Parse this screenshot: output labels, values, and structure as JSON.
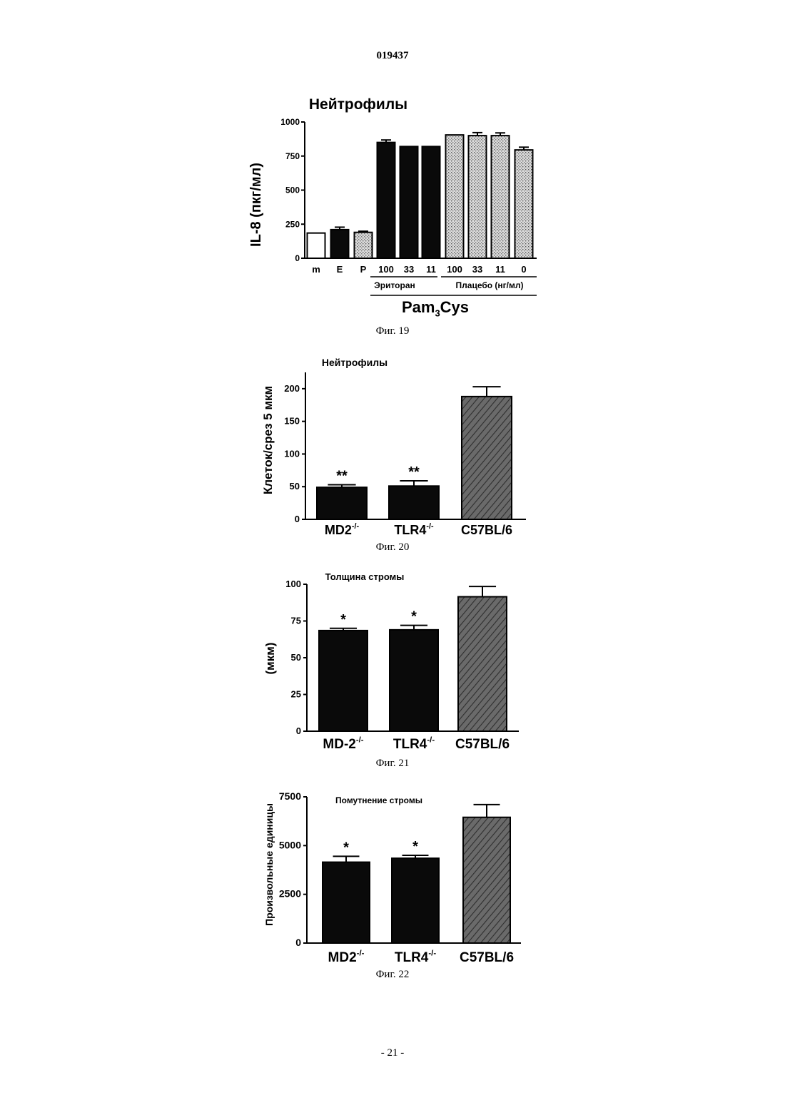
{
  "document": {
    "doc_number": "019437",
    "page_footer": "- 21 -"
  },
  "figures": [
    {
      "caption": "Фиг. 19",
      "chart_data": {
        "type": "bar",
        "title": "Нейтрофилы",
        "ylabel": "IL-8 (пкг/мл)",
        "xlabel": "",
        "ylim": [
          0,
          1000
        ],
        "yticks": [
          "0",
          "250",
          "500",
          "750",
          "1000"
        ],
        "categories": [
          "m",
          "E",
          "P",
          "100",
          "33",
          "11",
          "100",
          "33",
          "11",
          "0"
        ],
        "values": [
          185,
          210,
          190,
          850,
          820,
          820,
          905,
          900,
          900,
          795
        ],
        "errors": [
          0,
          18,
          8,
          18,
          0,
          0,
          0,
          22,
          20,
          20
        ],
        "bar_styles": [
          "white",
          "black",
          "dotted",
          "black",
          "black",
          "black",
          "dotted",
          "dotted",
          "dotted",
          "dotted"
        ],
        "group_labels": [
          "Эриторан",
          "Плацебо (нг/мл)"
        ],
        "bottom_label": "Pam",
        "bottom_label_sub": "3",
        "bottom_label_tail": "Cys"
      }
    },
    {
      "caption": "Фиг. 20",
      "chart_data": {
        "type": "bar",
        "title": "Нейтрофилы",
        "ylabel": "Клеток/срез 5 мкм",
        "xlabel": "",
        "ylim": [
          0,
          225
        ],
        "yticks": [
          "0",
          "50",
          "100",
          "150",
          "200"
        ],
        "categories": [
          "MD2",
          "TLR4",
          "C57BL/6"
        ],
        "category_sups": [
          "-/-",
          "-/-",
          ""
        ],
        "values": [
          49,
          51,
          188
        ],
        "errors": [
          4,
          8,
          15
        ],
        "significance": [
          "**",
          "**",
          ""
        ],
        "bar_styles": [
          "black",
          "black",
          "hatched"
        ]
      }
    },
    {
      "caption": "Фиг. 21",
      "chart_data": {
        "type": "bar",
        "title": "Толщина стромы",
        "ylabel": "(мкм)",
        "xlabel": "",
        "ylim": [
          0,
          100
        ],
        "yticks": [
          "0",
          "25",
          "50",
          "75",
          "100"
        ],
        "categories": [
          "MD-2",
          "TLR4",
          "C57BL/6"
        ],
        "category_sups": [
          "-/-",
          "-/-",
          ""
        ],
        "values": [
          68.5,
          69,
          91.5
        ],
        "errors": [
          1.5,
          3,
          7
        ],
        "significance": [
          "*",
          "*",
          ""
        ],
        "bar_styles": [
          "black",
          "black",
          "hatched"
        ]
      }
    },
    {
      "caption": "Фиг. 22",
      "chart_data": {
        "type": "bar",
        "title": "Помутнение стромы",
        "ylabel": "Произвольные единицы",
        "xlabel": "",
        "ylim": [
          0,
          7500
        ],
        "yticks": [
          "0",
          "2500",
          "5000",
          "7500"
        ],
        "categories": [
          "MD2",
          "TLR4",
          "C57BL/6"
        ],
        "category_sups": [
          "-/-",
          "-/-",
          ""
        ],
        "values": [
          4150,
          4350,
          6450
        ],
        "errors": [
          300,
          150,
          650
        ],
        "significance": [
          "*",
          "*",
          ""
        ],
        "bar_styles": [
          "black",
          "black",
          "hatched"
        ]
      }
    }
  ]
}
